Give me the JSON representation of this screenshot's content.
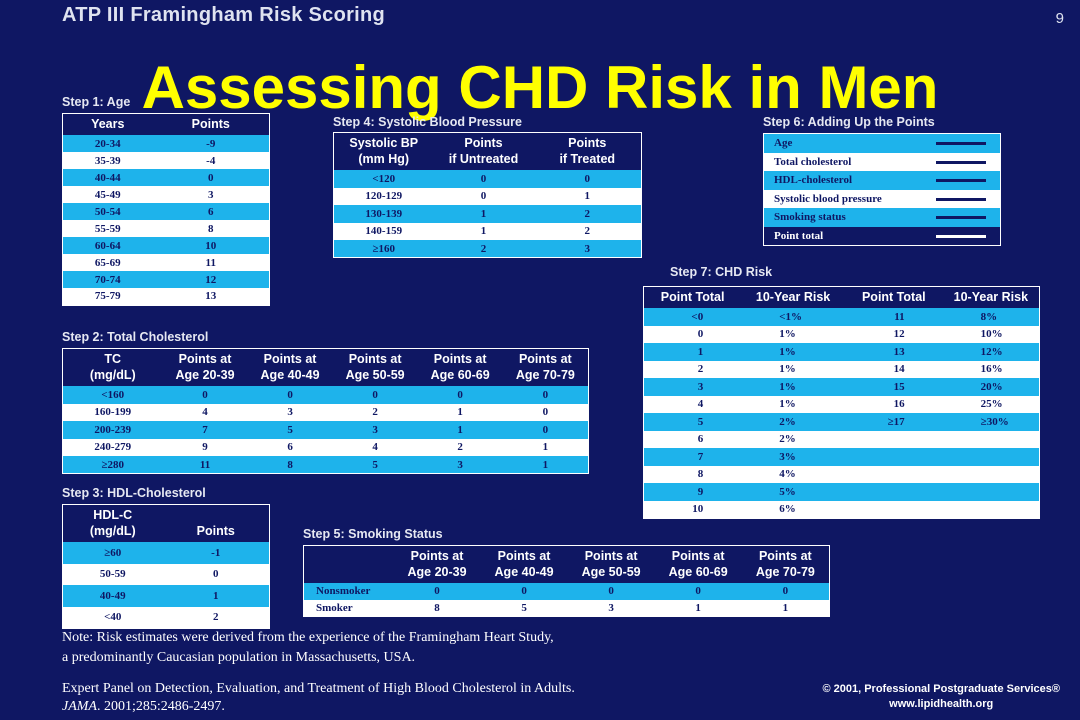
{
  "header": {
    "title": "ATP III Framingham Risk Scoring",
    "page_number": "9"
  },
  "title": "Assessing CHD Risk in Men",
  "step1": {
    "label": "Step 1: Age",
    "headers": [
      "Years",
      "Points"
    ],
    "rows": [
      [
        "20-34",
        "-9"
      ],
      [
        "35-39",
        "-4"
      ],
      [
        "40-44",
        "0"
      ],
      [
        "45-49",
        "3"
      ],
      [
        "50-54",
        "6"
      ],
      [
        "55-59",
        "8"
      ],
      [
        "60-64",
        "10"
      ],
      [
        "65-69",
        "11"
      ],
      [
        "70-74",
        "12"
      ],
      [
        "75-79",
        "13"
      ]
    ]
  },
  "step2": {
    "label": "Step 2: Total Cholesterol",
    "headers": [
      [
        "TC",
        "(mg/dL)"
      ],
      [
        "Points at",
        "Age 20-39"
      ],
      [
        "Points at",
        "Age 40-49"
      ],
      [
        "Points at",
        "Age 50-59"
      ],
      [
        "Points at",
        "Age 60-69"
      ],
      [
        "Points at",
        "Age 70-79"
      ]
    ],
    "rows": [
      [
        "<160",
        "0",
        "0",
        "0",
        "0",
        "0"
      ],
      [
        "160-199",
        "4",
        "3",
        "2",
        "1",
        "0"
      ],
      [
        "200-239",
        "7",
        "5",
        "3",
        "1",
        "0"
      ],
      [
        "240-279",
        "9",
        "6",
        "4",
        "2",
        "1"
      ],
      [
        "≥280",
        "11",
        "8",
        "5",
        "3",
        "1"
      ]
    ]
  },
  "step3": {
    "label": "Step 3: HDL-Cholesterol",
    "headers": [
      [
        "HDL-C",
        "(mg/dL)"
      ],
      [
        "Points"
      ]
    ],
    "rows": [
      [
        "≥60",
        "-1"
      ],
      [
        "50-59",
        "0"
      ],
      [
        "40-49",
        "1"
      ],
      [
        "<40",
        "2"
      ]
    ]
  },
  "step4": {
    "label": "Step 4: Systolic Blood Pressure",
    "headers": [
      [
        "Systolic BP",
        "(mm Hg)"
      ],
      [
        "Points",
        "if Untreated"
      ],
      [
        "Points",
        "if Treated"
      ]
    ],
    "rows": [
      [
        "<120",
        "0",
        "0"
      ],
      [
        "120-129",
        "0",
        "1"
      ],
      [
        "130-139",
        "1",
        "2"
      ],
      [
        "140-159",
        "1",
        "2"
      ],
      [
        "≥160",
        "2",
        "3"
      ]
    ]
  },
  "step5": {
    "label": "Step 5: Smoking Status",
    "headers": [
      [
        "",
        ""
      ],
      [
        "Points at",
        "Age 20-39"
      ],
      [
        "Points at",
        "Age 40-49"
      ],
      [
        "Points at",
        "Age 50-59"
      ],
      [
        "Points at",
        "Age 60-69"
      ],
      [
        "Points at",
        "Age 70-79"
      ]
    ],
    "rows": [
      [
        "Nonsmoker",
        "0",
        "0",
        "0",
        "0",
        "0"
      ],
      [
        "Smoker",
        "8",
        "5",
        "3",
        "1",
        "1"
      ]
    ]
  },
  "step6": {
    "label": "Step 6: Adding Up the Points",
    "rows": [
      "Age",
      "Total cholesterol",
      "HDL-cholesterol",
      "Systolic blood pressure",
      "Smoking status",
      "Point total"
    ]
  },
  "step7": {
    "label": "Step 7: CHD Risk",
    "headers": [
      "Point Total",
      "10-Year Risk",
      "Point Total",
      "10-Year Risk"
    ],
    "rows": [
      [
        "<0",
        "<1%",
        "11",
        "8%"
      ],
      [
        "0",
        "1%",
        "12",
        "10%"
      ],
      [
        "1",
        "1%",
        "13",
        "12%"
      ],
      [
        "2",
        "1%",
        "14",
        "16%"
      ],
      [
        "3",
        "1%",
        "15",
        "20%"
      ],
      [
        "4",
        "1%",
        "16",
        "25%"
      ],
      [
        "5",
        "2%",
        "≥17",
        "≥30%"
      ],
      [
        "6",
        "2%",
        "",
        ""
      ],
      [
        "7",
        "3%",
        "",
        ""
      ],
      [
        "8",
        "4%",
        "",
        ""
      ],
      [
        "9",
        "5%",
        "",
        ""
      ],
      [
        "10",
        "6%",
        "",
        ""
      ]
    ]
  },
  "note": {
    "line1": "Note: Risk estimates were derived from the experience of the Framingham Heart Study,",
    "line2": "a predominantly Caucasian population in Massachusetts, USA."
  },
  "reference": {
    "line1": "Expert Panel on Detection, Evaluation, and Treatment of High Blood Cholesterol in Adults.",
    "journal": "JAMA",
    "citation": ". 2001;285:2486-2497."
  },
  "copyright": {
    "line1": "© 2001, Professional Postgraduate Services®",
    "line2": "www.lipidhealth.org"
  },
  "colors": {
    "background": "#0f1763",
    "title": "#ffff00",
    "row_highlight": "#1eb3eb"
  }
}
